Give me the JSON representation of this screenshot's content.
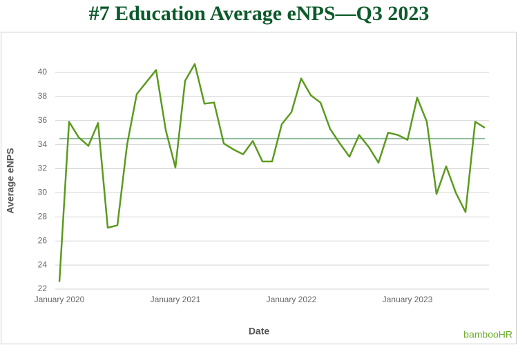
{
  "chart_data": {
    "type": "line",
    "title": "#7 Education Average eNPS—Q3 2023",
    "x_label": "Date",
    "y_label": "Average eNPS",
    "logo": "bambooHR",
    "categories": [
      "January 2020",
      null,
      null,
      null,
      null,
      null,
      null,
      null,
      null,
      null,
      null,
      null,
      "January 2021",
      null,
      null,
      null,
      null,
      null,
      null,
      null,
      null,
      null,
      null,
      null,
      "January 2022",
      null,
      null,
      null,
      null,
      null,
      null,
      null,
      null,
      null,
      null,
      null,
      "January 2023",
      null,
      null,
      null,
      null,
      null,
      null,
      null,
      null
    ],
    "series": [
      {
        "name": "Average eNPS",
        "color": "#5b9a1f",
        "values": [
          22.6,
          35.9,
          34.6,
          33.9,
          35.8,
          27.1,
          27.3,
          34.0,
          38.2,
          39.2,
          40.2,
          35.2,
          32.1,
          39.3,
          40.7,
          37.4,
          37.5,
          34.1,
          33.6,
          33.2,
          34.3,
          32.6,
          32.6,
          35.7,
          36.7,
          39.5,
          38.1,
          37.5,
          35.3,
          34.1,
          33.0,
          34.8,
          33.8,
          32.5,
          35.0,
          34.8,
          34.4,
          37.9,
          35.9,
          29.9,
          32.2,
          30.0,
          28.4,
          35.9,
          35.4
        ]
      }
    ],
    "reference_line": {
      "value": 34.5,
      "color": "#8dbb9b"
    },
    "ylim": [
      22,
      41
    ],
    "yticks": [
      22,
      24,
      26,
      28,
      30,
      32,
      34,
      36,
      38,
      40
    ],
    "grid": true
  }
}
